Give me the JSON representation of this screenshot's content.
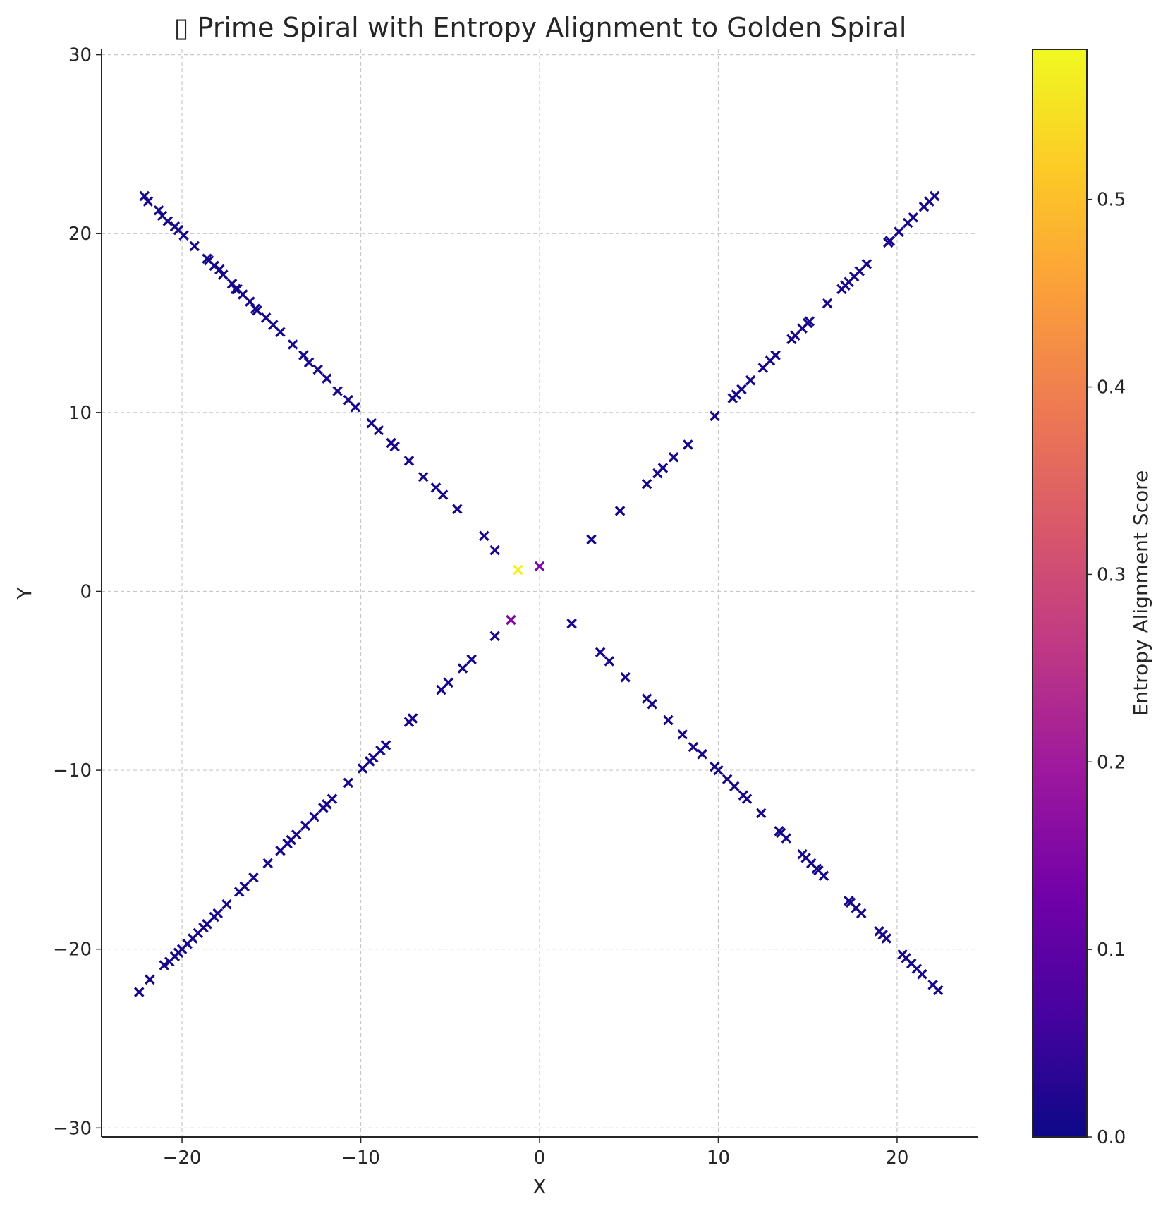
{
  "chart_data": {
    "type": "scatter",
    "title": "▯ Prime Spiral with Entropy Alignment to Golden Spiral",
    "xlabel": "X",
    "ylabel": "Y",
    "xlim": [
      -24.5,
      24.5
    ],
    "ylim": [
      -30.5,
      30.3
    ],
    "xticks": [
      -20,
      -10,
      0,
      10,
      20
    ],
    "yticks": [
      -30,
      -20,
      -10,
      0,
      10,
      20,
      30
    ],
    "xtick_labels": [
      "−20",
      "−10",
      "0",
      "10",
      "20"
    ],
    "ytick_labels": [
      "−30",
      "−20",
      "−10",
      "0",
      "10",
      "20",
      "30"
    ],
    "grid": true,
    "marker": "x",
    "colormap": "plasma",
    "colorbar": {
      "label": "Entropy Alignment Score",
      "range": [
        0.0,
        0.58
      ],
      "ticks": [
        0.0,
        0.1,
        0.2,
        0.3,
        0.4,
        0.5
      ],
      "tick_labels": [
        "0.0",
        "0.1",
        "0.2",
        "0.3",
        "0.4",
        "0.5"
      ],
      "stops": [
        "#0d0887",
        "#46039f",
        "#7201a8",
        "#9c179e",
        "#bd3786",
        "#d8576b",
        "#ed7953",
        "#fb9f3a",
        "#fdca26",
        "#f0f921"
      ]
    },
    "points": [
      {
        "x": -1.2,
        "y": 1.2,
        "c": 0.57
      },
      {
        "x": 0.0,
        "y": 1.4,
        "c": 0.15
      },
      {
        "x": -1.6,
        "y": -1.6,
        "c": 0.15
      },
      {
        "x": -2.5,
        "y": 2.3,
        "c": 0.02
      },
      {
        "x": -3.1,
        "y": 3.1,
        "c": 0.02
      },
      {
        "x": -4.6,
        "y": 4.6,
        "c": 0.01
      },
      {
        "x": -5.4,
        "y": 5.4,
        "c": 0.01
      },
      {
        "x": -5.8,
        "y": 5.8,
        "c": 0.01
      },
      {
        "x": -6.5,
        "y": 6.4,
        "c": 0.01
      },
      {
        "x": -7.3,
        "y": 7.3,
        "c": 0.01
      },
      {
        "x": -8.1,
        "y": 8.1,
        "c": 0.01
      },
      {
        "x": -8.3,
        "y": 8.3,
        "c": 0.01
      },
      {
        "x": -9.0,
        "y": 9.0,
        "c": 0.01
      },
      {
        "x": -9.4,
        "y": 9.4,
        "c": 0.01
      },
      {
        "x": -10.3,
        "y": 10.3,
        "c": 0.01
      },
      {
        "x": -10.7,
        "y": 10.7,
        "c": 0.01
      },
      {
        "x": -11.3,
        "y": 11.2,
        "c": 0.01
      },
      {
        "x": -11.9,
        "y": 11.9,
        "c": 0.01
      },
      {
        "x": -12.4,
        "y": 12.4,
        "c": 0.01
      },
      {
        "x": -12.9,
        "y": 12.8,
        "c": 0.01
      },
      {
        "x": -13.2,
        "y": 13.2,
        "c": 0.01
      },
      {
        "x": -13.8,
        "y": 13.8,
        "c": 0.01
      },
      {
        "x": -14.5,
        "y": 14.5,
        "c": 0.01
      },
      {
        "x": -14.9,
        "y": 14.9,
        "c": 0.01
      },
      {
        "x": -15.3,
        "y": 15.3,
        "c": 0.01
      },
      {
        "x": -15.8,
        "y": 15.7,
        "c": 0.01
      },
      {
        "x": -15.9,
        "y": 15.8,
        "c": 0.01
      },
      {
        "x": -16.2,
        "y": 16.2,
        "c": 0.01
      },
      {
        "x": -16.6,
        "y": 16.6,
        "c": 0.01
      },
      {
        "x": -16.9,
        "y": 16.9,
        "c": 0.01
      },
      {
        "x": -17.0,
        "y": 16.9,
        "c": 0.01
      },
      {
        "x": -17.2,
        "y": 17.2,
        "c": 0.01
      },
      {
        "x": -17.7,
        "y": 17.7,
        "c": 0.01
      },
      {
        "x": -17.9,
        "y": 18.0,
        "c": 0.01
      },
      {
        "x": -18.2,
        "y": 18.2,
        "c": 0.01
      },
      {
        "x": -18.5,
        "y": 18.5,
        "c": 0.01
      },
      {
        "x": -18.6,
        "y": 18.6,
        "c": 0.01
      },
      {
        "x": -19.3,
        "y": 19.3,
        "c": 0.01
      },
      {
        "x": -19.9,
        "y": 19.9,
        "c": 0.01
      },
      {
        "x": -20.2,
        "y": 20.2,
        "c": 0.01
      },
      {
        "x": -20.4,
        "y": 20.4,
        "c": 0.01
      },
      {
        "x": -20.8,
        "y": 20.7,
        "c": 0.01
      },
      {
        "x": -21.1,
        "y": 21.0,
        "c": 0.01
      },
      {
        "x": -21.3,
        "y": 21.3,
        "c": 0.01
      },
      {
        "x": -21.9,
        "y": 21.8,
        "c": 0.01
      },
      {
        "x": -22.1,
        "y": 22.1,
        "c": 0.01
      },
      {
        "x": 2.9,
        "y": 2.9,
        "c": 0.01
      },
      {
        "x": 4.5,
        "y": 4.5,
        "c": 0.01
      },
      {
        "x": 6.0,
        "y": 6.0,
        "c": 0.01
      },
      {
        "x": 6.6,
        "y": 6.6,
        "c": 0.01
      },
      {
        "x": 6.9,
        "y": 6.9,
        "c": 0.01
      },
      {
        "x": 7.5,
        "y": 7.5,
        "c": 0.01
      },
      {
        "x": 8.3,
        "y": 8.2,
        "c": 0.01
      },
      {
        "x": 9.8,
        "y": 9.8,
        "c": 0.01
      },
      {
        "x": 10.8,
        "y": 10.8,
        "c": 0.01
      },
      {
        "x": 11.0,
        "y": 11.0,
        "c": 0.01
      },
      {
        "x": 11.3,
        "y": 11.3,
        "c": 0.01
      },
      {
        "x": 11.8,
        "y": 11.8,
        "c": 0.01
      },
      {
        "x": 12.5,
        "y": 12.5,
        "c": 0.01
      },
      {
        "x": 12.9,
        "y": 12.9,
        "c": 0.01
      },
      {
        "x": 13.2,
        "y": 13.2,
        "c": 0.01
      },
      {
        "x": 14.1,
        "y": 14.1,
        "c": 0.01
      },
      {
        "x": 14.3,
        "y": 14.3,
        "c": 0.01
      },
      {
        "x": 14.7,
        "y": 14.7,
        "c": 0.01
      },
      {
        "x": 15.0,
        "y": 15.0,
        "c": 0.01
      },
      {
        "x": 15.1,
        "y": 15.1,
        "c": 0.01
      },
      {
        "x": 16.1,
        "y": 16.1,
        "c": 0.01
      },
      {
        "x": 16.9,
        "y": 16.9,
        "c": 0.01
      },
      {
        "x": 17.1,
        "y": 17.1,
        "c": 0.01
      },
      {
        "x": 17.3,
        "y": 17.3,
        "c": 0.01
      },
      {
        "x": 17.6,
        "y": 17.6,
        "c": 0.01
      },
      {
        "x": 17.9,
        "y": 17.9,
        "c": 0.01
      },
      {
        "x": 18.3,
        "y": 18.3,
        "c": 0.01
      },
      {
        "x": 19.5,
        "y": 19.5,
        "c": 0.01
      },
      {
        "x": 19.6,
        "y": 19.6,
        "c": 0.01
      },
      {
        "x": 20.1,
        "y": 20.1,
        "c": 0.01
      },
      {
        "x": 20.6,
        "y": 20.6,
        "c": 0.01
      },
      {
        "x": 20.9,
        "y": 20.9,
        "c": 0.01
      },
      {
        "x": 21.5,
        "y": 21.5,
        "c": 0.01
      },
      {
        "x": 21.8,
        "y": 21.8,
        "c": 0.01
      },
      {
        "x": 22.1,
        "y": 22.1,
        "c": 0.01
      },
      {
        "x": -2.5,
        "y": -2.5,
        "c": 0.02
      },
      {
        "x": -3.8,
        "y": -3.8,
        "c": 0.01
      },
      {
        "x": -4.3,
        "y": -4.3,
        "c": 0.01
      },
      {
        "x": -5.1,
        "y": -5.1,
        "c": 0.01
      },
      {
        "x": -5.5,
        "y": -5.5,
        "c": 0.01
      },
      {
        "x": -7.1,
        "y": -7.1,
        "c": 0.01
      },
      {
        "x": -7.3,
        "y": -7.3,
        "c": 0.01
      },
      {
        "x": -8.6,
        "y": -8.6,
        "c": 0.01
      },
      {
        "x": -8.9,
        "y": -8.9,
        "c": 0.01
      },
      {
        "x": -9.3,
        "y": -9.3,
        "c": 0.01
      },
      {
        "x": -9.5,
        "y": -9.5,
        "c": 0.01
      },
      {
        "x": -9.9,
        "y": -9.9,
        "c": 0.01
      },
      {
        "x": -10.7,
        "y": -10.7,
        "c": 0.01
      },
      {
        "x": -11.6,
        "y": -11.6,
        "c": 0.01
      },
      {
        "x": -11.9,
        "y": -11.9,
        "c": 0.01
      },
      {
        "x": -12.1,
        "y": -12.1,
        "c": 0.01
      },
      {
        "x": -12.6,
        "y": -12.6,
        "c": 0.01
      },
      {
        "x": -13.1,
        "y": -13.1,
        "c": 0.01
      },
      {
        "x": -13.6,
        "y": -13.6,
        "c": 0.01
      },
      {
        "x": -13.9,
        "y": -13.9,
        "c": 0.01
      },
      {
        "x": -14.1,
        "y": -14.1,
        "c": 0.01
      },
      {
        "x": -14.5,
        "y": -14.5,
        "c": 0.01
      },
      {
        "x": -15.2,
        "y": -15.2,
        "c": 0.01
      },
      {
        "x": -16.0,
        "y": -16.0,
        "c": 0.01
      },
      {
        "x": -16.5,
        "y": -16.5,
        "c": 0.01
      },
      {
        "x": -16.8,
        "y": -16.8,
        "c": 0.01
      },
      {
        "x": -17.5,
        "y": -17.5,
        "c": 0.01
      },
      {
        "x": -18.0,
        "y": -18.0,
        "c": 0.01
      },
      {
        "x": -18.2,
        "y": -18.2,
        "c": 0.01
      },
      {
        "x": -18.6,
        "y": -18.6,
        "c": 0.01
      },
      {
        "x": -18.8,
        "y": -18.8,
        "c": 0.01
      },
      {
        "x": -19.1,
        "y": -19.1,
        "c": 0.01
      },
      {
        "x": -19.4,
        "y": -19.4,
        "c": 0.01
      },
      {
        "x": -19.7,
        "y": -19.7,
        "c": 0.01
      },
      {
        "x": -20.0,
        "y": -20.0,
        "c": 0.01
      },
      {
        "x": -20.2,
        "y": -20.2,
        "c": 0.01
      },
      {
        "x": -20.4,
        "y": -20.4,
        "c": 0.01
      },
      {
        "x": -20.7,
        "y": -20.7,
        "c": 0.01
      },
      {
        "x": -21.0,
        "y": -20.9,
        "c": 0.01
      },
      {
        "x": -21.8,
        "y": -21.7,
        "c": 0.01
      },
      {
        "x": -22.4,
        "y": -22.4,
        "c": 0.01
      },
      {
        "x": 1.8,
        "y": -1.8,
        "c": 0.01
      },
      {
        "x": 3.4,
        "y": -3.4,
        "c": 0.01
      },
      {
        "x": 3.9,
        "y": -3.9,
        "c": 0.01
      },
      {
        "x": 4.8,
        "y": -4.8,
        "c": 0.01
      },
      {
        "x": 6.0,
        "y": -6.0,
        "c": 0.01
      },
      {
        "x": 6.3,
        "y": -6.3,
        "c": 0.01
      },
      {
        "x": 7.2,
        "y": -7.2,
        "c": 0.01
      },
      {
        "x": 8.0,
        "y": -8.0,
        "c": 0.01
      },
      {
        "x": 8.6,
        "y": -8.7,
        "c": 0.01
      },
      {
        "x": 9.1,
        "y": -9.1,
        "c": 0.01
      },
      {
        "x": 9.8,
        "y": -9.8,
        "c": 0.01
      },
      {
        "x": 10.0,
        "y": -10.0,
        "c": 0.01
      },
      {
        "x": 10.5,
        "y": -10.5,
        "c": 0.01
      },
      {
        "x": 10.9,
        "y": -10.9,
        "c": 0.01
      },
      {
        "x": 11.4,
        "y": -11.4,
        "c": 0.01
      },
      {
        "x": 11.6,
        "y": -11.6,
        "c": 0.01
      },
      {
        "x": 12.4,
        "y": -12.4,
        "c": 0.01
      },
      {
        "x": 13.4,
        "y": -13.4,
        "c": 0.01
      },
      {
        "x": 13.5,
        "y": -13.5,
        "c": 0.01
      },
      {
        "x": 13.8,
        "y": -13.8,
        "c": 0.01
      },
      {
        "x": 14.7,
        "y": -14.7,
        "c": 0.01
      },
      {
        "x": 14.9,
        "y": -14.9,
        "c": 0.01
      },
      {
        "x": 15.2,
        "y": -15.2,
        "c": 0.01
      },
      {
        "x": 15.5,
        "y": -15.5,
        "c": 0.01
      },
      {
        "x": 15.6,
        "y": -15.6,
        "c": 0.01
      },
      {
        "x": 15.9,
        "y": -15.9,
        "c": 0.01
      },
      {
        "x": 17.3,
        "y": -17.3,
        "c": 0.01
      },
      {
        "x": 17.4,
        "y": -17.4,
        "c": 0.01
      },
      {
        "x": 17.7,
        "y": -17.7,
        "c": 0.01
      },
      {
        "x": 18.0,
        "y": -18.0,
        "c": 0.01
      },
      {
        "x": 19.0,
        "y": -19.0,
        "c": 0.01
      },
      {
        "x": 19.2,
        "y": -19.2,
        "c": 0.01
      },
      {
        "x": 19.4,
        "y": -19.4,
        "c": 0.01
      },
      {
        "x": 20.3,
        "y": -20.3,
        "c": 0.01
      },
      {
        "x": 20.5,
        "y": -20.5,
        "c": 0.01
      },
      {
        "x": 20.8,
        "y": -20.8,
        "c": 0.01
      },
      {
        "x": 21.1,
        "y": -21.1,
        "c": 0.01
      },
      {
        "x": 21.4,
        "y": -21.4,
        "c": 0.01
      },
      {
        "x": 22.0,
        "y": -22.0,
        "c": 0.01
      },
      {
        "x": 22.3,
        "y": -22.3,
        "c": 0.01
      }
    ]
  }
}
